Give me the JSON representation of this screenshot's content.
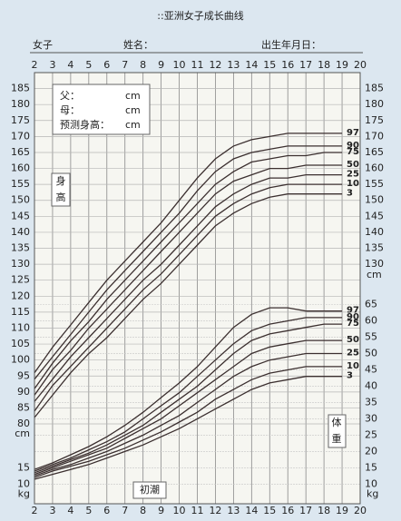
{
  "chart_data": {
    "type": "line",
    "title": "::亚洲女子成长曲线",
    "header": {
      "sex": "女子",
      "name": "姓名：",
      "birth": "出生年月日："
    },
    "info_box": {
      "father": "父：",
      "mother": "母：",
      "predicted": "预测身高：",
      "unit": "cm"
    },
    "height_label": [
      "身",
      "高"
    ],
    "weight_label": [
      "体",
      "重"
    ],
    "menarche_label": "初潮",
    "y_unit": "cm",
    "y2_unit": "kg",
    "x": [
      2,
      3,
      4,
      5,
      6,
      7,
      8,
      9,
      10,
      11,
      12,
      13,
      14,
      15,
      16,
      17,
      18,
      19
    ],
    "xlim": [
      2,
      20
    ],
    "xticks": [
      2,
      3,
      4,
      5,
      6,
      7,
      8,
      9,
      10,
      11,
      12,
      13,
      14,
      15,
      16,
      17,
      18,
      19,
      20
    ],
    "ylim": [
      55,
      190
    ],
    "yticks": [
      80,
      85,
      90,
      95,
      100,
      105,
      110,
      115,
      120,
      125,
      130,
      135,
      140,
      145,
      150,
      155,
      160,
      165,
      170,
      175,
      180,
      185
    ],
    "yticks_right": [
      130,
      135,
      140,
      145,
      150,
      155,
      160,
      165,
      170,
      175,
      180,
      185
    ],
    "y2lim": [
      4,
      136
    ],
    "y2ticks": [
      10,
      15,
      20,
      25,
      30,
      35,
      40,
      45,
      50,
      55,
      60,
      65
    ],
    "y2ticks_left": [
      10,
      15
    ],
    "grid": true,
    "color": "#3b2f2f",
    "series": [
      {
        "name": "97",
        "values": [
          96,
          104,
          111,
          118,
          125,
          131,
          137,
          143,
          150,
          157,
          163,
          167,
          169,
          170,
          171,
          171,
          171,
          171
        ]
      },
      {
        "name": "90",
        "values": [
          94,
          101,
          108,
          115,
          122,
          128,
          134,
          140,
          146,
          153,
          159,
          163,
          165,
          166,
          167,
          167,
          167,
          167
        ]
      },
      {
        "name": "75",
        "values": [
          91,
          99,
          106,
          112,
          119,
          125,
          131,
          137,
          143,
          149,
          155,
          159,
          162,
          163,
          164,
          164,
          165,
          165
        ]
      },
      {
        "name": "50",
        "values": [
          89,
          97,
          103,
          110,
          116,
          122,
          128,
          134,
          140,
          146,
          152,
          156,
          158,
          160,
          160,
          161,
          161,
          161
        ]
      },
      {
        "name": "25",
        "values": [
          87,
          94,
          101,
          107,
          113,
          119,
          125,
          130,
          136,
          142,
          148,
          152,
          155,
          157,
          157,
          158,
          158,
          158
        ]
      },
      {
        "name": "10",
        "values": [
          84,
          92,
          98,
          104,
          110,
          116,
          122,
          127,
          133,
          139,
          145,
          149,
          152,
          154,
          155,
          155,
          155,
          155
        ]
      },
      {
        "name": "3",
        "values": [
          82,
          89,
          96,
          102,
          107,
          113,
          119,
          124,
          130,
          136,
          142,
          146,
          149,
          151,
          152,
          152,
          152,
          152
        ]
      },
      {
        "name": "97",
        "axis": "y2",
        "values": [
          14.5,
          16.5,
          19,
          21.5,
          24.5,
          28,
          32,
          36.5,
          41,
          46,
          52,
          58,
          62,
          64,
          64,
          63,
          63,
          63
        ]
      },
      {
        "name": "90",
        "axis": "y2",
        "values": [
          14,
          16,
          18,
          20.5,
          23,
          26,
          30,
          34,
          38,
          43,
          48,
          53,
          57,
          59,
          60,
          61,
          61,
          61
        ]
      },
      {
        "name": "75",
        "axis": "y2",
        "values": [
          13.5,
          15.5,
          17.5,
          19.5,
          22,
          25,
          28,
          32,
          36,
          40,
          45,
          50,
          54,
          56,
          57,
          58,
          59,
          59
        ]
      },
      {
        "name": "50",
        "axis": "y2",
        "values": [
          13,
          15,
          17,
          19,
          21,
          24,
          27,
          30,
          34,
          38,
          42,
          46,
          50,
          52,
          53,
          54,
          54,
          54
        ]
      },
      {
        "name": "25",
        "axis": "y2",
        "values": [
          12.5,
          14.5,
          16,
          18,
          20,
          22.5,
          25,
          28,
          31,
          35,
          39,
          43,
          46,
          48,
          49,
          50,
          50,
          50
        ]
      },
      {
        "name": "10",
        "axis": "y2",
        "values": [
          12,
          14,
          15.5,
          17,
          19,
          21,
          23.5,
          26,
          29,
          32,
          36,
          39,
          42,
          44,
          45,
          46,
          46,
          46
        ]
      },
      {
        "name": "3",
        "axis": "y2",
        "values": [
          11.5,
          13,
          14.5,
          16,
          18,
          20,
          22,
          24.5,
          27,
          30,
          33,
          36,
          39,
          41,
          42,
          43,
          43,
          43
        ]
      }
    ]
  }
}
